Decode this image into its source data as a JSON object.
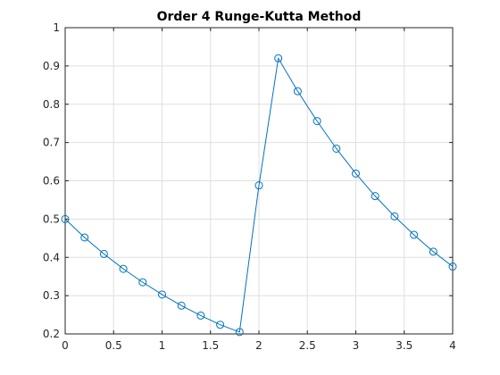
{
  "chart_data": {
    "type": "line",
    "title": "Order 4 Runge-Kutta Method",
    "xlabel": "",
    "ylabel": "",
    "xlim": [
      0,
      4
    ],
    "ylim": [
      0.2,
      1
    ],
    "xticks": [
      0,
      0.5,
      1,
      1.5,
      2,
      2.5,
      3,
      3.5,
      4
    ],
    "xtick_labels": [
      "0",
      "0.5",
      "1",
      "1.5",
      "2",
      "2.5",
      "3",
      "3.5",
      "4"
    ],
    "yticks": [
      0.2,
      0.3,
      0.4,
      0.5,
      0.6,
      0.7,
      0.8,
      0.9,
      1
    ],
    "ytick_labels": [
      "0.2",
      "0.3",
      "0.4",
      "0.5",
      "0.6",
      "0.7",
      "0.8",
      "0.9",
      "1"
    ],
    "grid": true,
    "marker": "circle",
    "series_color": "#0072BD",
    "series": [
      {
        "x": [
          0,
          0.2,
          0.4,
          0.6,
          0.8,
          1.0,
          1.2,
          1.4,
          1.6,
          1.8,
          2.0,
          2.2,
          2.4,
          2.6,
          2.8,
          3.0,
          3.2,
          3.4,
          3.6,
          3.8,
          4.0
        ],
        "y": [
          0.5,
          0.452,
          0.409,
          0.37,
          0.335,
          0.303,
          0.274,
          0.248,
          0.224,
          0.205,
          0.588,
          0.92,
          0.834,
          0.756,
          0.684,
          0.619,
          0.56,
          0.507,
          0.459,
          0.415,
          0.376
        ]
      }
    ]
  }
}
